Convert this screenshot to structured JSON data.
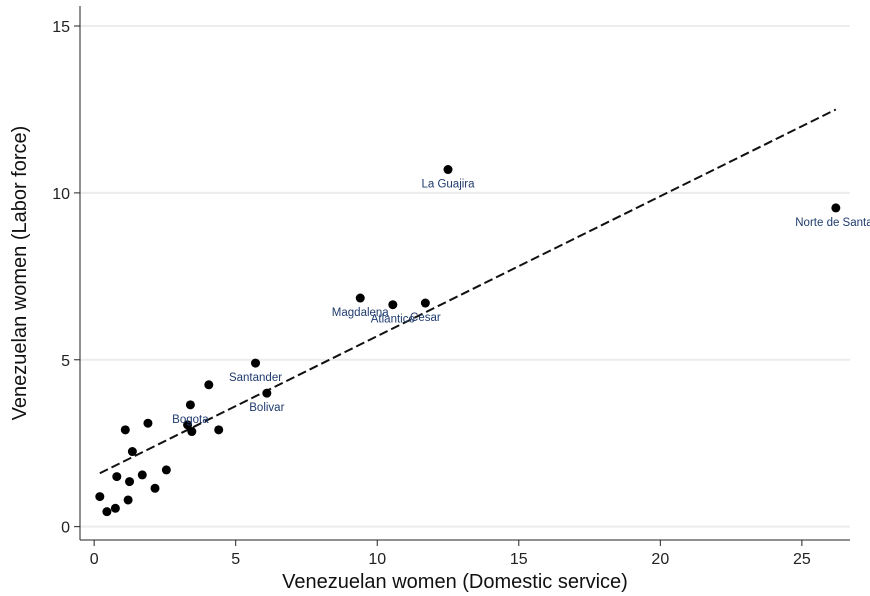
{
  "chart_data": {
    "type": "scatter",
    "title": "",
    "xlabel": "Venezuelan women (Domestic service)",
    "ylabel": "Venezuelan women (Labor force)",
    "xlim": [
      -0.5,
      26.7
    ],
    "ylim": [
      -0.4,
      15.6
    ],
    "x_ticks": [
      0,
      5,
      10,
      15,
      20,
      25
    ],
    "y_ticks": [
      0,
      5,
      10,
      15
    ],
    "grid": "horizontal",
    "marker_color": "#000000",
    "label_color": "#1f3b6e",
    "fit_line": {
      "style": "dashed",
      "x": [
        0.2,
        26.2
      ],
      "y": [
        1.6,
        12.5
      ]
    },
    "points": [
      {
        "x": 0.2,
        "y": 0.9,
        "label": ""
      },
      {
        "x": 0.45,
        "y": 0.45,
        "label": ""
      },
      {
        "x": 0.75,
        "y": 0.55,
        "label": ""
      },
      {
        "x": 0.8,
        "y": 1.5,
        "label": ""
      },
      {
        "x": 1.1,
        "y": 2.9,
        "label": ""
      },
      {
        "x": 1.2,
        "y": 0.8,
        "label": ""
      },
      {
        "x": 1.25,
        "y": 1.35,
        "label": ""
      },
      {
        "x": 1.35,
        "y": 2.25,
        "label": ""
      },
      {
        "x": 1.7,
        "y": 1.55,
        "label": ""
      },
      {
        "x": 1.9,
        "y": 3.1,
        "label": ""
      },
      {
        "x": 2.15,
        "y": 1.15,
        "label": ""
      },
      {
        "x": 2.55,
        "y": 1.7,
        "label": ""
      },
      {
        "x": 3.3,
        "y": 3.05,
        "label": ""
      },
      {
        "x": 3.4,
        "y": 3.65,
        "label": "Bogota"
      },
      {
        "x": 3.45,
        "y": 2.85,
        "label": ""
      },
      {
        "x": 4.05,
        "y": 4.25,
        "label": ""
      },
      {
        "x": 4.4,
        "y": 2.9,
        "label": ""
      },
      {
        "x": 5.7,
        "y": 4.9,
        "label": "Santander"
      },
      {
        "x": 6.1,
        "y": 4.0,
        "label": "Bolivar"
      },
      {
        "x": 9.4,
        "y": 6.85,
        "label": "Magdalena"
      },
      {
        "x": 10.55,
        "y": 6.65,
        "label": "Atlantico"
      },
      {
        "x": 11.7,
        "y": 6.7,
        "label": "Cesar"
      },
      {
        "x": 12.5,
        "y": 10.7,
        "label": "La Guajira"
      },
      {
        "x": 26.2,
        "y": 9.55,
        "label": "Norte de Santar"
      }
    ]
  }
}
